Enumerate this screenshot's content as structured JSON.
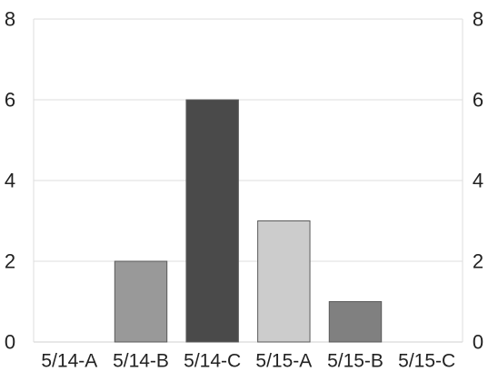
{
  "chart_data": {
    "type": "bar",
    "title": "",
    "xlabel": "",
    "ylabel": "",
    "categories": [
      "5/14-A",
      "5/14-B",
      "5/14-C",
      "5/15-A",
      "5/15-B",
      "5/15-C"
    ],
    "values": [
      0,
      2,
      6,
      3,
      1,
      0
    ],
    "ylim": [
      0,
      8
    ],
    "y_ticks": [
      0,
      2,
      4,
      6,
      8
    ],
    "y_axis_right_mirror": true,
    "grid": true,
    "legend": "none",
    "colors": {
      "bars": [
        "#777777",
        "#999999",
        "#4a4a4a",
        "#cccccc",
        "#808080",
        "#aaaaaa"
      ],
      "bar_stroke": "#5a5a5a",
      "gridline": "#dedede",
      "axis": "#cfcfcf",
      "text": "#222222"
    }
  }
}
